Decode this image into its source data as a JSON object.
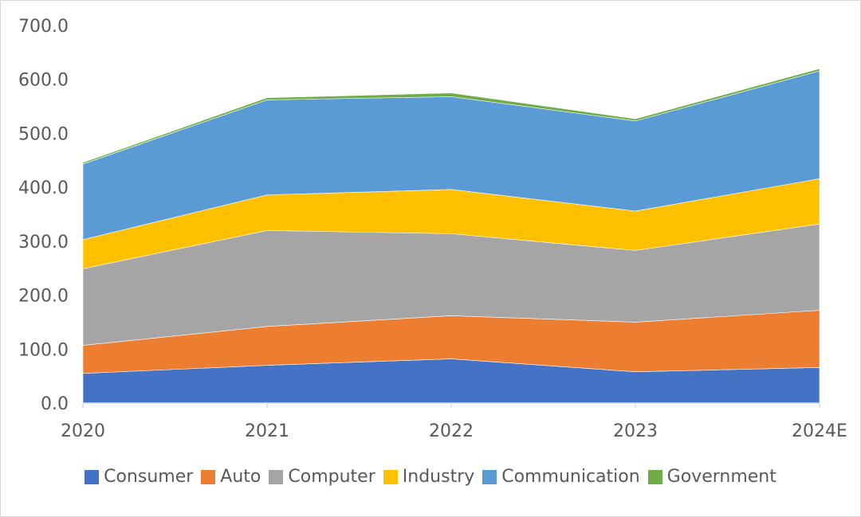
{
  "chart_data": {
    "type": "area",
    "stacked": true,
    "categories": [
      "2020",
      "2021",
      "2022",
      "2023",
      "2024E"
    ],
    "series": [
      {
        "name": "Consumer",
        "color": "#4472C4",
        "values": [
          55,
          70,
          82,
          58,
          66
        ]
      },
      {
        "name": "Auto",
        "color": "#ED7D31",
        "values": [
          52,
          72,
          80,
          92,
          106
        ]
      },
      {
        "name": "Computer",
        "color": "#A5A5A5",
        "values": [
          142,
          178,
          152,
          133,
          160
        ]
      },
      {
        "name": "Industry",
        "color": "#FFC000",
        "values": [
          54,
          66,
          82,
          73,
          84
        ]
      },
      {
        "name": "Communication",
        "color": "#5B9BD5",
        "values": [
          140,
          176,
          172,
          167,
          200
        ]
      },
      {
        "name": "Government",
        "color": "#70AD47",
        "values": [
          3,
          4,
          7,
          4,
          4
        ]
      }
    ],
    "ylim": [
      0,
      700
    ],
    "yticks": [
      "0.0",
      "100.0",
      "200.0",
      "300.0",
      "400.0",
      "500.0",
      "600.0",
      "700.0"
    ],
    "grid": false,
    "legend": "bottom"
  }
}
